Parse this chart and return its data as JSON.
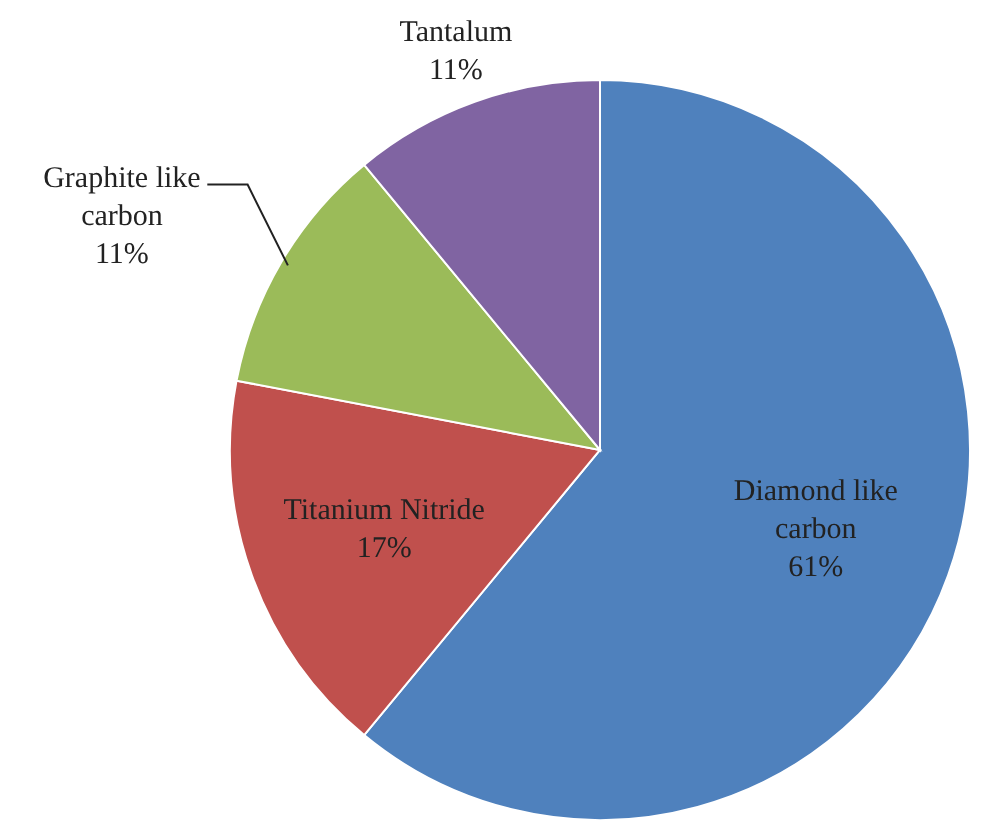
{
  "chart_data": {
    "type": "pie",
    "categories": [
      "Diamond like carbon",
      "Titanium Nitride",
      "Graphite like carbon",
      "Tantalum"
    ],
    "values": [
      61,
      17,
      11,
      11
    ],
    "value_labels": [
      "61%",
      "17%",
      "11%",
      "11%"
    ],
    "colors": [
      "#4f81bd",
      "#c0504d",
      "#9bbb59",
      "#8064a2"
    ]
  }
}
